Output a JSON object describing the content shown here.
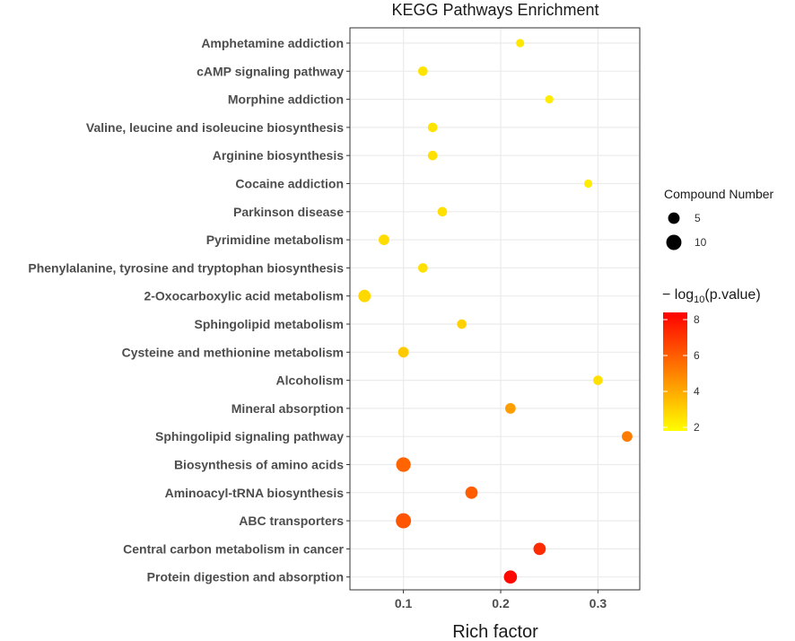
{
  "chart_data": {
    "type": "scatter",
    "title": "KEGG Pathways Enrichment",
    "xlabel": "Rich factor",
    "ylabel": "",
    "xlim": [
      0.045,
      0.343
    ],
    "xticks": [
      0.1,
      0.2,
      0.3
    ],
    "xtick_labels": [
      "0.1",
      "0.2",
      "0.3"
    ],
    "grid": true,
    "categories": [
      "Amphetamine addiction",
      "cAMP signaling pathway",
      "Morphine addiction",
      "Valine, leucine and isoleucine biosynthesis",
      "Arginine biosynthesis",
      "Cocaine addiction",
      "Parkinson disease",
      "Pyrimidine metabolism",
      "Phenylalanine, tyrosine and tryptophan biosynthesis",
      "2-Oxocarboxylic acid metabolism",
      "Sphingolipid metabolism",
      "Cysteine and methionine metabolism",
      "Alcoholism",
      "Mineral absorption",
      "Sphingolipid signaling pathway",
      "Biosynthesis of amino acids",
      "Aminoacyl-tRNA biosynthesis",
      "ABC transporters",
      "Central carbon metabolism in cancer",
      "Protein digestion and absorption"
    ],
    "rich_factor": [
      0.22,
      0.12,
      0.25,
      0.13,
      0.13,
      0.29,
      0.14,
      0.08,
      0.12,
      0.06,
      0.16,
      0.1,
      0.3,
      0.21,
      0.33,
      0.1,
      0.17,
      0.1,
      0.24,
      0.21
    ],
    "compound_number": [
      2,
      3,
      2,
      3,
      3,
      2,
      3,
      4,
      3,
      6,
      3,
      4,
      3,
      4,
      4,
      9,
      6,
      10,
      6,
      7
    ],
    "neg_log10_pvalue": [
      2.4,
      2.5,
      2.3,
      2.5,
      2.6,
      2.3,
      2.6,
      2.7,
      2.6,
      2.8,
      3.0,
      3.2,
      2.6,
      4.3,
      5.2,
      5.8,
      6.0,
      6.2,
      7.3,
      8.2
    ],
    "size_legend": {
      "title": "Compound Number",
      "entries": [
        {
          "label": "5",
          "value": 5
        },
        {
          "label": "10",
          "value": 10
        }
      ]
    },
    "color_legend": {
      "title_prefix": "− log",
      "title_sub": "10",
      "title_suffix": "(p.value)",
      "min": 1.8,
      "max": 8.4,
      "ticks": [
        2,
        4,
        6,
        8
      ],
      "tick_labels": [
        "2",
        "4",
        "6",
        "8"
      ],
      "low_color": "#FFFF00",
      "high_color": "#FF0000"
    },
    "panel_background": "#FFFFFF",
    "grid_color": "#EBEBEB",
    "border_color": "#333333"
  }
}
